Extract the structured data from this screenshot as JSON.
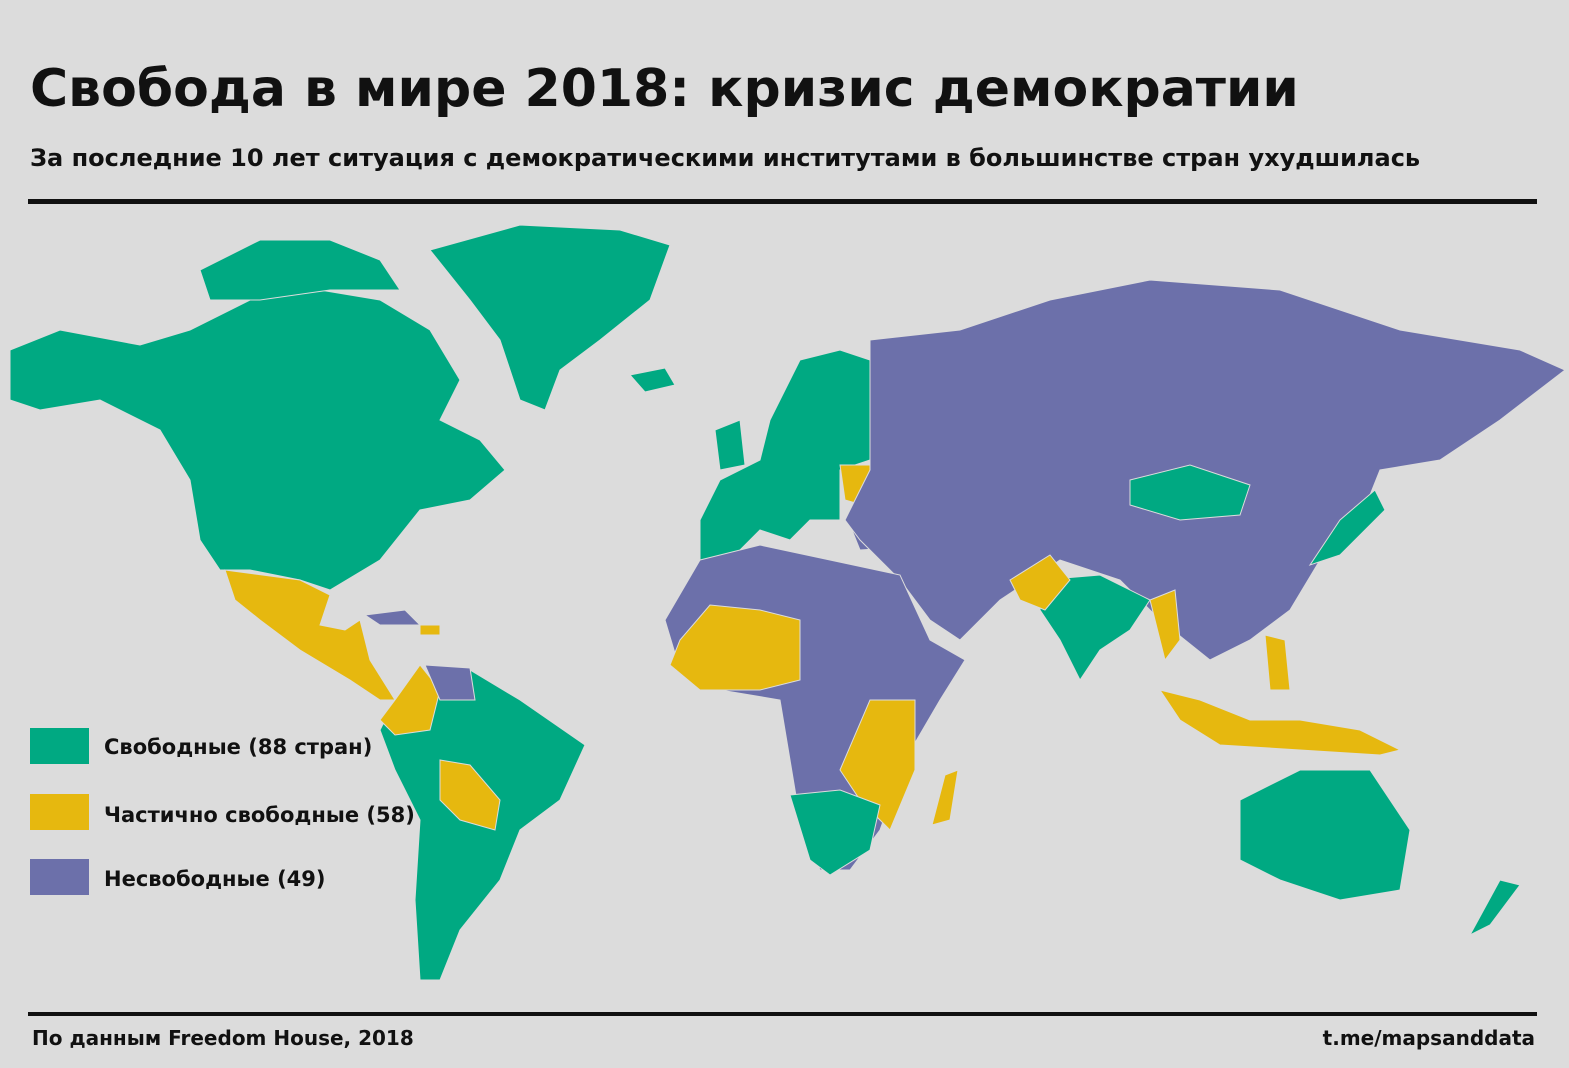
{
  "header": {
    "title": "Свобода в мире 2018: кризис демократии",
    "subtitle": "За последние 10 лет ситуация с демократическими институтами в большинстве стран ухудшилась"
  },
  "legend": [
    {
      "label": "Свободные (88 стран)",
      "color": "#00a982"
    },
    {
      "label": "Частично свободные (58)",
      "color": "#e6b80f"
    },
    {
      "label": "Несвободные (49)",
      "color": "#6c70aa"
    }
  ],
  "footer": {
    "source": "По данным Freedom House, 2018",
    "link": "t.me/mapsanddata"
  }
}
